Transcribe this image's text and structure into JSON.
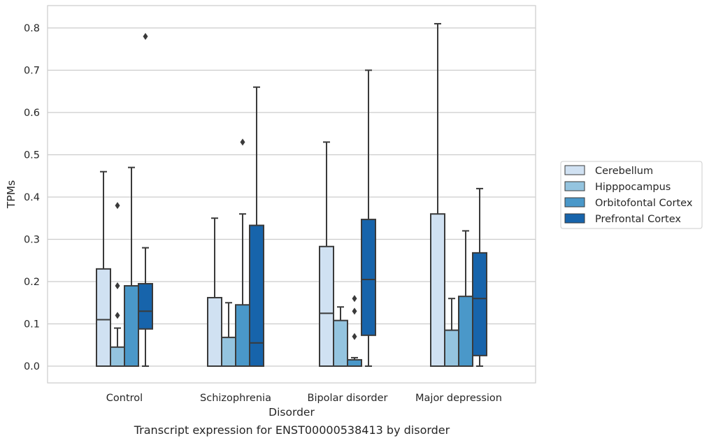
{
  "caption": "Transcript expression for ENST00000538413 by disorder",
  "chart_data": {
    "type": "box",
    "xlabel": "Disorder",
    "ylabel": "TPMs",
    "ylim": [
      -0.04,
      0.85
    ],
    "yticks": [
      "0.0",
      "0.1",
      "0.2",
      "0.3",
      "0.4",
      "0.5",
      "0.6",
      "0.7",
      "0.8"
    ],
    "grid": "horizontal",
    "legend_position": "right",
    "categories": [
      "Control",
      "Schizophrenia",
      "Bipolar disorder",
      "Major depression"
    ],
    "series": [
      {
        "name": "Cerebellum",
        "color": "#d0e1f2",
        "boxes": [
          {
            "whisker_low": 0.0,
            "q1": 0.0,
            "median": 0.11,
            "q3": 0.23,
            "whisker_high": 0.46,
            "outliers": []
          },
          {
            "whisker_low": 0.0,
            "q1": 0.0,
            "median": 0.0,
            "q3": 0.162,
            "whisker_high": 0.35,
            "outliers": []
          },
          {
            "whisker_low": 0.0,
            "q1": 0.0,
            "median": 0.125,
            "q3": 0.283,
            "whisker_high": 0.53,
            "outliers": []
          },
          {
            "whisker_low": 0.0,
            "q1": 0.0,
            "median": 0.0,
            "q3": 0.36,
            "whisker_high": 0.81,
            "outliers": []
          }
        ]
      },
      {
        "name": "Hipppocampus",
        "color": "#94c4df",
        "boxes": [
          {
            "whisker_low": 0.0,
            "q1": 0.0,
            "median": 0.0,
            "q3": 0.045,
            "whisker_high": 0.09,
            "outliers": [
              0.12,
              0.19,
              0.38
            ]
          },
          {
            "whisker_low": 0.0,
            "q1": 0.0,
            "median": 0.0,
            "q3": 0.068,
            "whisker_high": 0.15,
            "outliers": []
          },
          {
            "whisker_low": 0.0,
            "q1": 0.0,
            "median": 0.0,
            "q3": 0.108,
            "whisker_high": 0.14,
            "outliers": []
          },
          {
            "whisker_low": 0.0,
            "q1": 0.0,
            "median": 0.0,
            "q3": 0.085,
            "whisker_high": 0.16,
            "outliers": []
          }
        ]
      },
      {
        "name": "Orbitofontal Cortex",
        "color": "#4a98c9",
        "boxes": [
          {
            "whisker_low": 0.0,
            "q1": 0.0,
            "median": 0.0,
            "q3": 0.19,
            "whisker_high": 0.47,
            "outliers": []
          },
          {
            "whisker_low": 0.0,
            "q1": 0.0,
            "median": 0.0,
            "q3": 0.145,
            "whisker_high": 0.36,
            "outliers": [
              0.53
            ]
          },
          {
            "whisker_low": 0.0,
            "q1": 0.0,
            "median": 0.0,
            "q3": 0.015,
            "whisker_high": 0.02,
            "outliers": [
              0.07,
              0.13,
              0.16
            ]
          },
          {
            "whisker_low": 0.0,
            "q1": 0.0,
            "median": 0.0,
            "q3": 0.165,
            "whisker_high": 0.32,
            "outliers": []
          }
        ]
      },
      {
        "name": "Prefrontal Cortex",
        "color": "#1764ab",
        "boxes": [
          {
            "whisker_low": 0.0,
            "q1": 0.088,
            "median": 0.13,
            "q3": 0.195,
            "whisker_high": 0.28,
            "outliers": [
              0.78
            ]
          },
          {
            "whisker_low": 0.0,
            "q1": 0.0,
            "median": 0.055,
            "q3": 0.333,
            "whisker_high": 0.66,
            "outliers": []
          },
          {
            "whisker_low": 0.0,
            "q1": 0.073,
            "median": 0.205,
            "q3": 0.347,
            "whisker_high": 0.7,
            "outliers": []
          },
          {
            "whisker_low": 0.0,
            "q1": 0.025,
            "median": 0.16,
            "q3": 0.268,
            "whisker_high": 0.42,
            "outliers": []
          }
        ]
      }
    ]
  }
}
